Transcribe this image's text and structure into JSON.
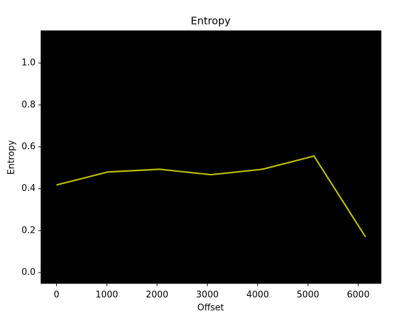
{
  "chart_data": {
    "type": "line",
    "title": "Entropy",
    "x_label": "Offset",
    "y_label": "Entropy",
    "x": [
      0,
      1024,
      2048,
      3072,
      4096,
      5120,
      6144
    ],
    "series": [
      {
        "name": "Entropy",
        "color": "#bfbf00",
        "values": [
          0.418,
          0.48,
          0.493,
          0.467,
          0.493,
          0.556,
          0.17
        ]
      }
    ],
    "xlim": [
      -307.2,
      6451.2
    ],
    "ylim": [
      -0.052,
      1.154
    ],
    "xticks": [
      0,
      1000,
      2000,
      3000,
      4000,
      5000,
      6000
    ],
    "yticks": [
      {
        "value": 0,
        "label": "0.0"
      },
      {
        "value": 0.2,
        "label": "0.2"
      },
      {
        "value": 0.4,
        "label": "0.4"
      },
      {
        "value": 0.6,
        "label": "0.6"
      },
      {
        "value": 0.8,
        "label": "0.8"
      },
      {
        "value": 1.0,
        "label": "1.0"
      }
    ],
    "background": "#000000"
  }
}
